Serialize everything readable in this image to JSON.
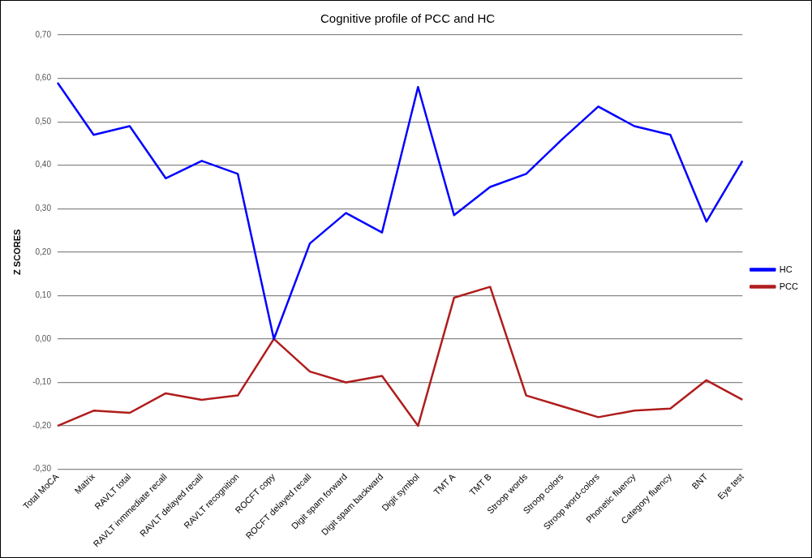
{
  "chart_data": {
    "type": "line",
    "title": "Cognitive profile of PCC and HC",
    "ylabel": "Z SCORES",
    "categories": [
      "Total MoCA",
      "Matrix",
      "RAVLT total",
      "RAVLT inmmediate recall",
      "RAVLT delayed recall",
      "RAVLT recognition",
      "ROCFT copy",
      "ROCFT delayed recall",
      "Digit spam forward",
      "Digit spam backward",
      "Digit symbol",
      "TMT A",
      "TMT B",
      "Stroop words",
      "Stroop colors",
      "Stroop word-colors",
      "Phonetic fluency",
      "Category fluency",
      "BNT",
      "Eye test"
    ],
    "series": [
      {
        "name": "HC",
        "color": "#0000ff",
        "values": [
          0.59,
          0.47,
          0.49,
          0.37,
          0.41,
          0.38,
          0.0,
          0.22,
          0.29,
          0.245,
          0.58,
          0.285,
          0.35,
          0.38,
          0.46,
          0.535,
          0.49,
          0.47,
          0.27,
          0.41
        ]
      },
      {
        "name": "PCC",
        "color": "#b01c1c",
        "values": [
          -0.2,
          -0.165,
          -0.17,
          -0.125,
          -0.14,
          -0.13,
          0.0,
          -0.075,
          -0.1,
          -0.085,
          -0.2,
          0.095,
          0.12,
          -0.13,
          -0.155,
          -0.18,
          -0.165,
          -0.16,
          -0.095,
          -0.14
        ]
      }
    ],
    "ylim": [
      -0.3,
      0.7
    ],
    "yticks": [
      {
        "value": -0.3,
        "label": "-0,30"
      },
      {
        "value": -0.2,
        "label": "-0,20"
      },
      {
        "value": -0.1,
        "label": "-0,10"
      },
      {
        "value": 0,
        "label": "0,00"
      },
      {
        "value": 0.1,
        "label": "0,10"
      },
      {
        "value": 0.2,
        "label": "0,20"
      },
      {
        "value": 0.3,
        "label": "0,30"
      },
      {
        "value": 0.4,
        "label": "0,40"
      },
      {
        "value": 0.5,
        "label": "0,50"
      },
      {
        "value": 0.6,
        "label": "0,60"
      },
      {
        "value": 0.7,
        "label": "0,70"
      }
    ],
    "grid": "y",
    "legend": "right",
    "marker": "none",
    "line_style": "solid"
  }
}
